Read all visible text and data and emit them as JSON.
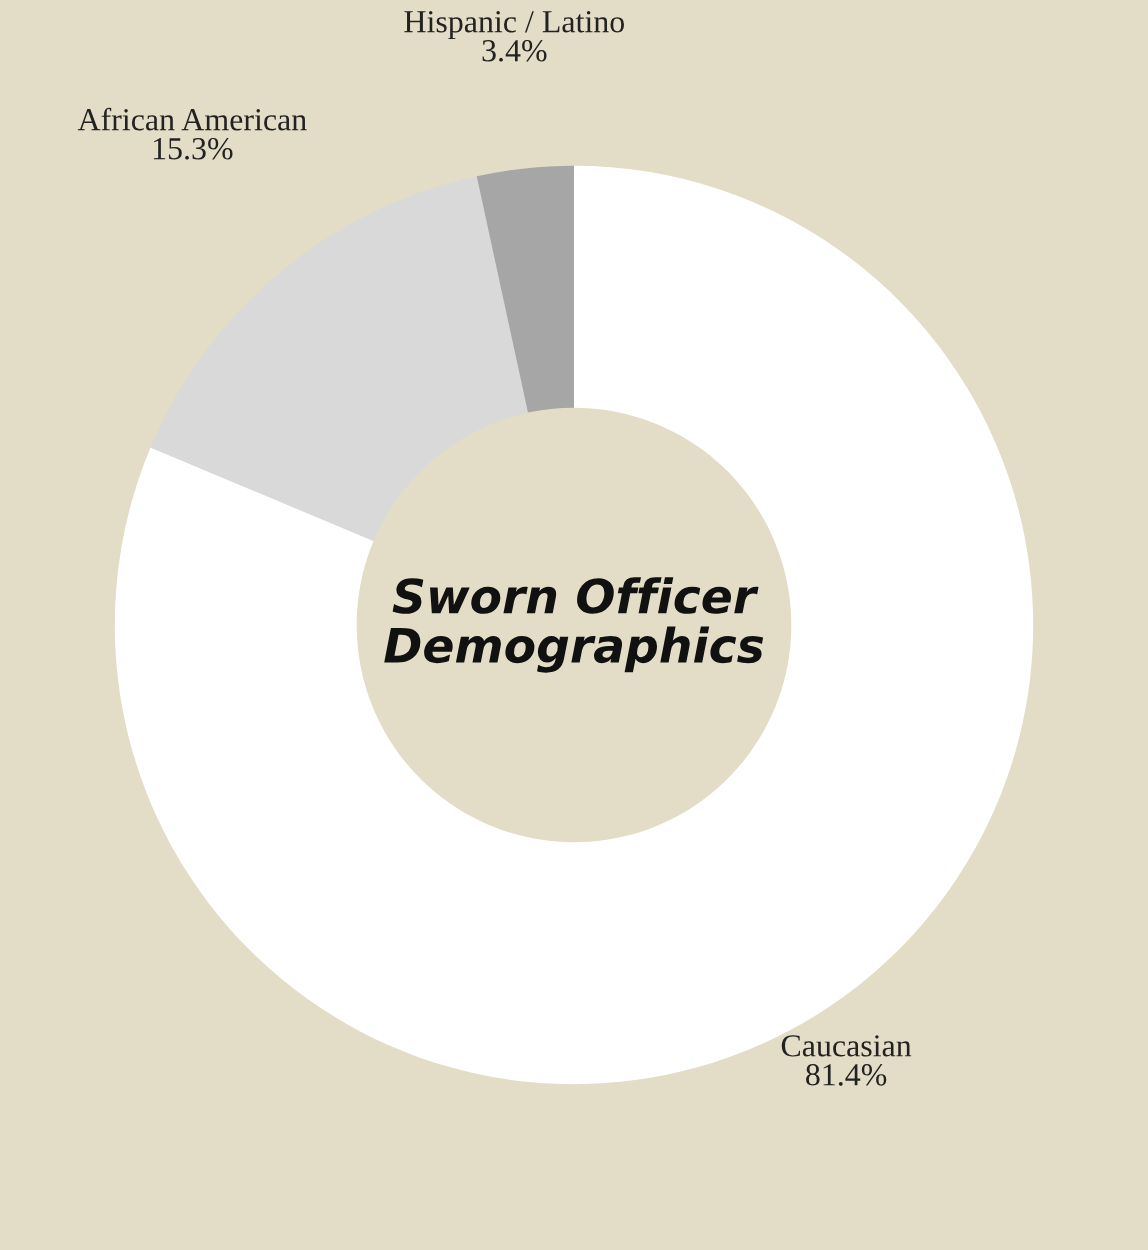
{
  "chart_data": {
    "type": "donut",
    "title": "Sworn Officer\nDemographics",
    "categories": [
      "Caucasian",
      "African American",
      "Hispanic / Latino"
    ],
    "values": [
      81.4,
      15.3,
      3.4
    ],
    "colors": [
      "#ffffff",
      "#d9d9d9",
      "#a6a6a6"
    ],
    "value_labels": [
      "81.4%",
      "15.3%",
      "3.4%"
    ],
    "legend": false
  }
}
